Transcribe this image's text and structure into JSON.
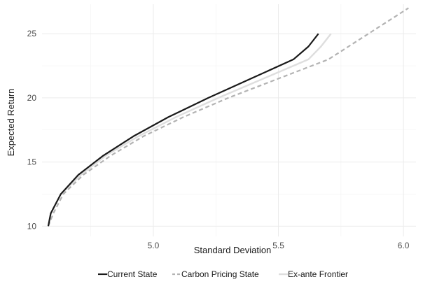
{
  "chart_data": {
    "type": "line",
    "title": "",
    "xlabel": "Standard Deviation",
    "ylabel": "Expected Return",
    "xlim": [
      4.555,
      6.05
    ],
    "ylim": [
      9.2,
      27.3
    ],
    "x_ticks": [
      5.0,
      5.5,
      6.0
    ],
    "y_ticks": [
      10,
      15,
      20,
      25
    ],
    "x_tick_labels": [
      "5.0",
      "5.5",
      "6.0"
    ],
    "y_tick_labels": [
      "10",
      "15",
      "20",
      "25"
    ],
    "grid": true,
    "legend_position": "bottom",
    "series": [
      {
        "name": "Current State",
        "color": "#1a1a1a",
        "style": "solid",
        "points": [
          [
            4.58,
            10.0
          ],
          [
            4.59,
            11.0
          ],
          [
            4.63,
            12.5
          ],
          [
            4.7,
            14.0
          ],
          [
            4.8,
            15.5
          ],
          [
            4.92,
            17.0
          ],
          [
            5.06,
            18.5
          ],
          [
            5.22,
            20.0
          ],
          [
            5.39,
            21.5
          ],
          [
            5.56,
            23.0
          ],
          [
            5.62,
            24.0
          ],
          [
            5.66,
            25.0
          ]
        ]
      },
      {
        "name": "Carbon Pricing State",
        "color": "#b3b3b3",
        "style": "dashed",
        "points": [
          [
            4.58,
            10.0
          ],
          [
            4.6,
            11.0
          ],
          [
            4.64,
            12.5
          ],
          [
            4.72,
            14.0
          ],
          [
            4.83,
            15.5
          ],
          [
            4.96,
            17.0
          ],
          [
            5.12,
            18.5
          ],
          [
            5.3,
            20.0
          ],
          [
            5.5,
            21.5
          ],
          [
            5.7,
            23.0
          ],
          [
            5.86,
            25.0
          ],
          [
            6.02,
            27.0
          ]
        ]
      },
      {
        "name": "Ex-ante Frontier",
        "color": "#dedede",
        "style": "solid",
        "points": [
          [
            4.58,
            10.0
          ],
          [
            4.59,
            11.0
          ],
          [
            4.63,
            12.5
          ],
          [
            4.71,
            14.0
          ],
          [
            4.81,
            15.5
          ],
          [
            4.94,
            17.0
          ],
          [
            5.09,
            18.5
          ],
          [
            5.26,
            20.0
          ],
          [
            5.44,
            21.5
          ],
          [
            5.62,
            23.0
          ],
          [
            5.67,
            24.0
          ],
          [
            5.71,
            25.0
          ]
        ]
      }
    ]
  }
}
